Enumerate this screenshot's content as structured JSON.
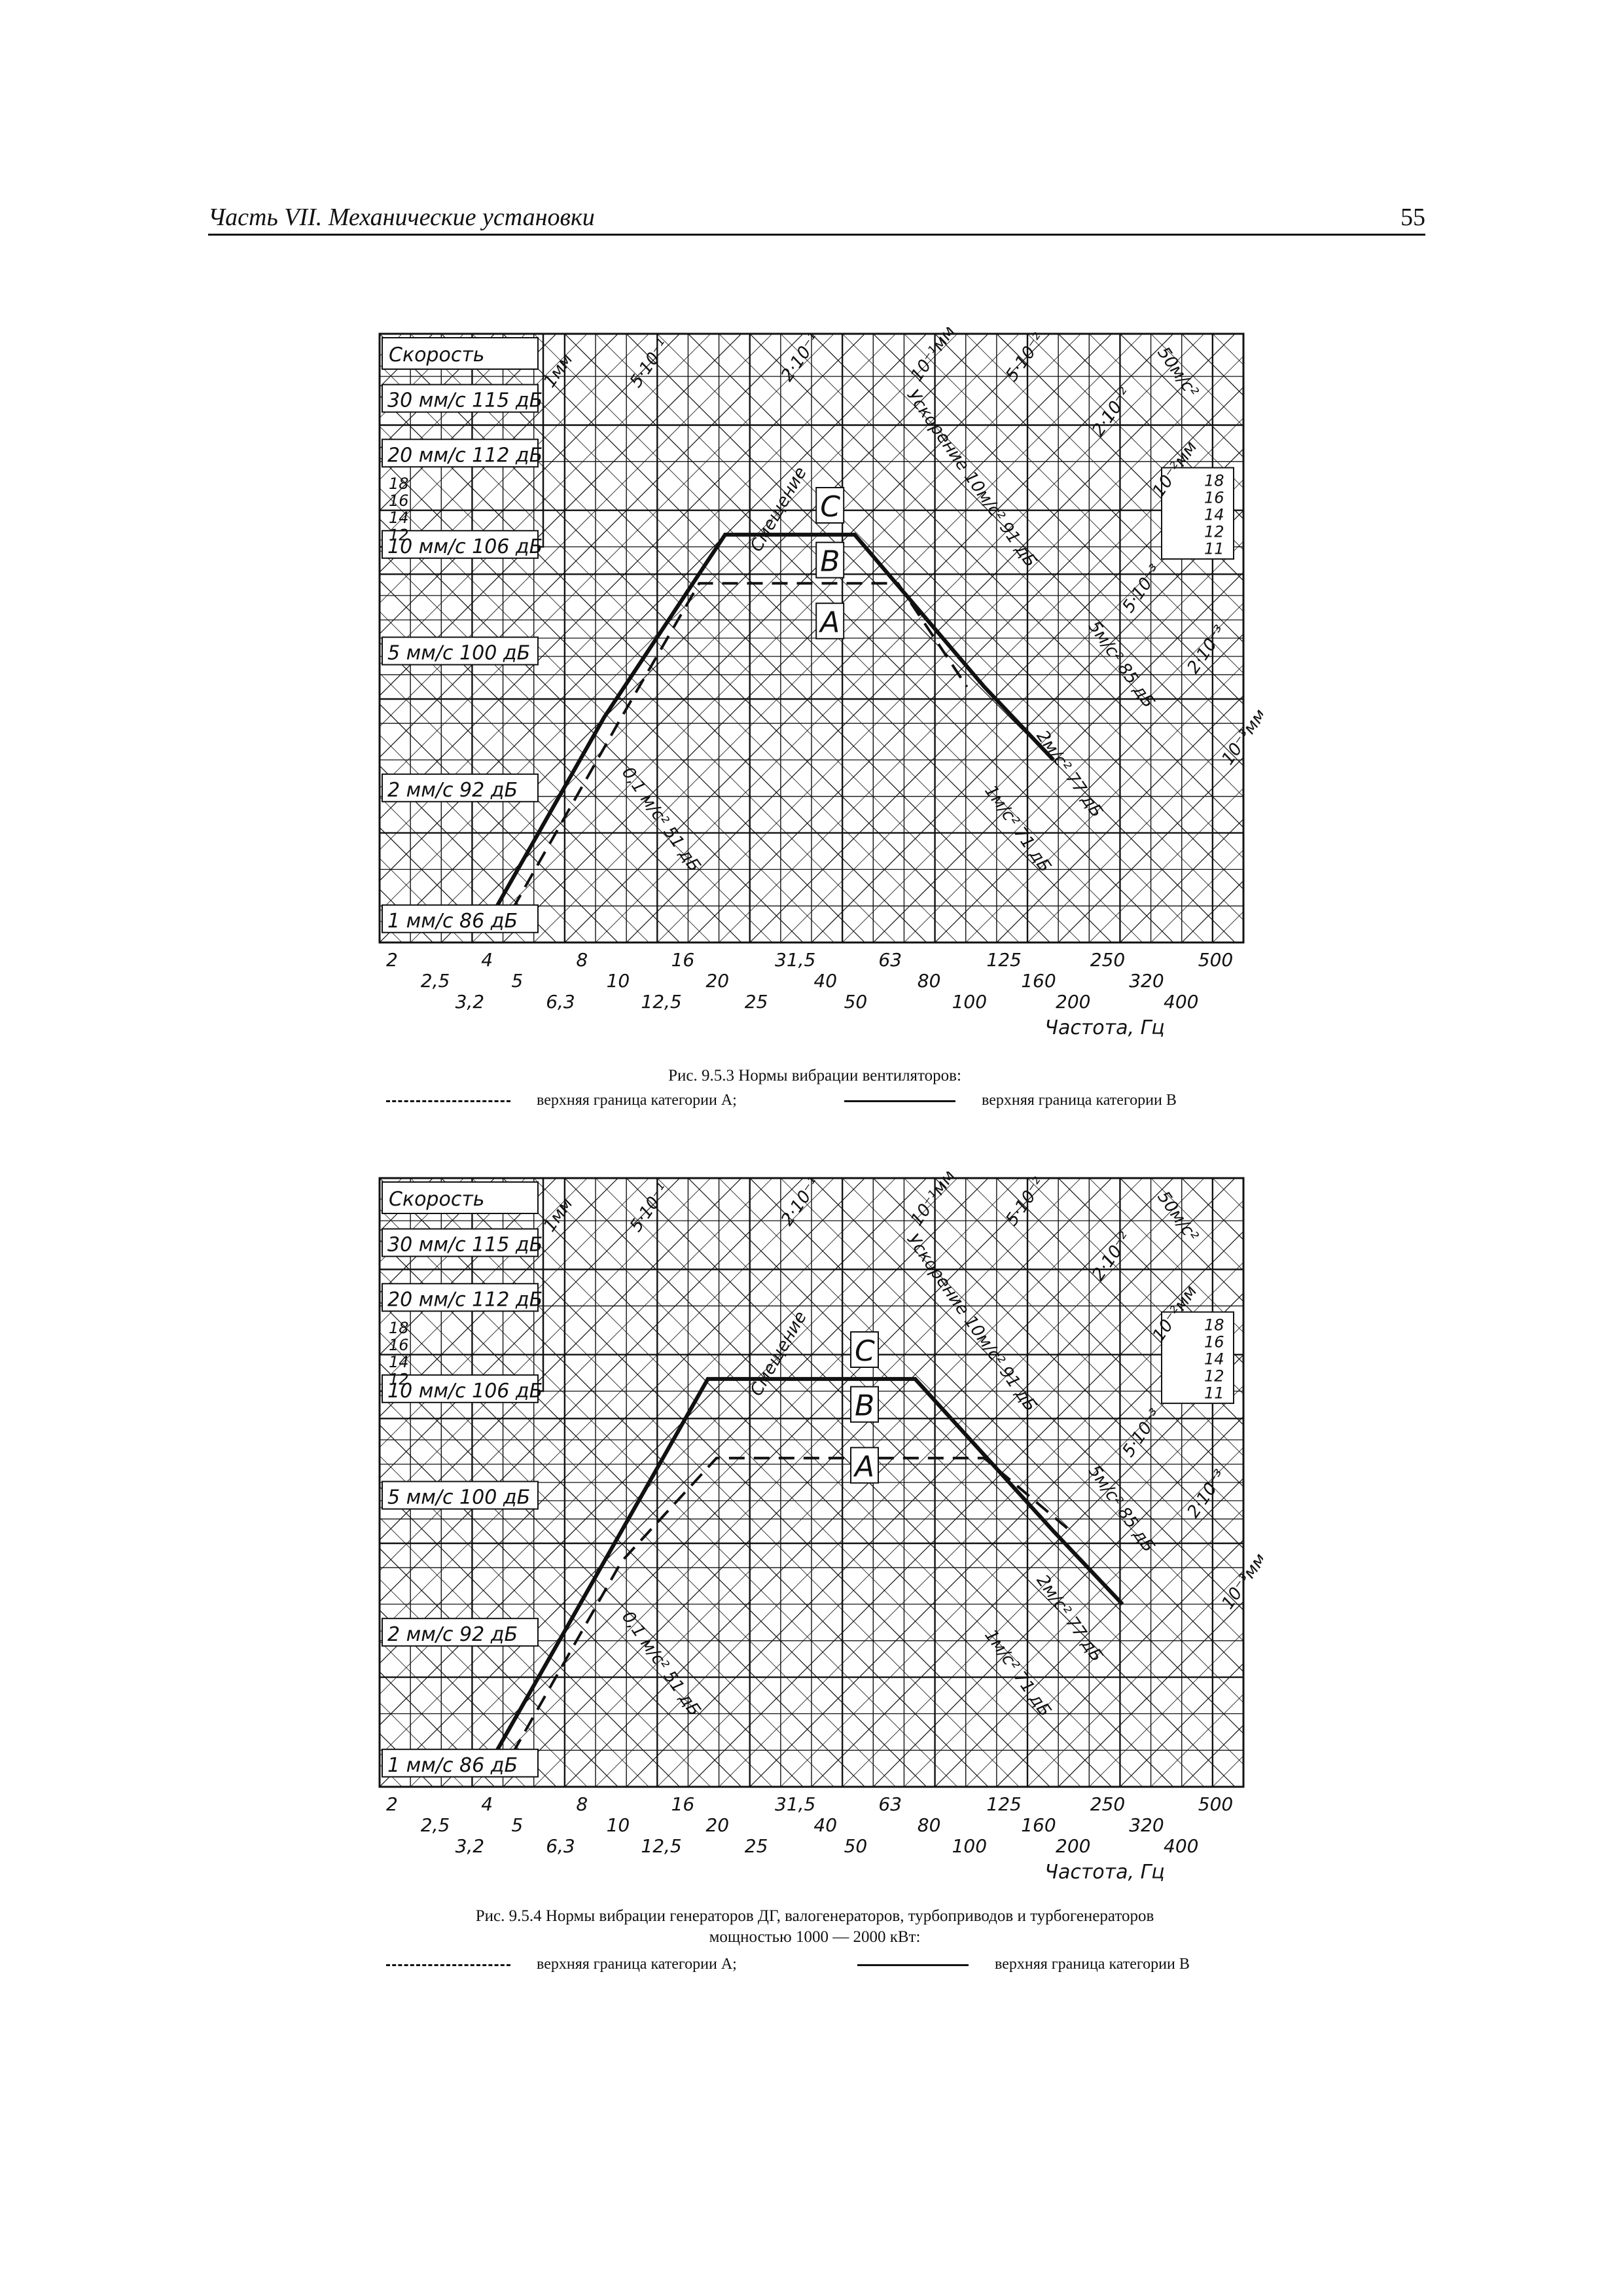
{
  "header": {
    "title": "Часть VII. Механические установки",
    "page_number": "55"
  },
  "figures": [
    {
      "id": "fig-9-5-3",
      "caption_lines": [
        "Рис. 9.5.3 Нормы вибрации вентиляторов:"
      ],
      "legend": {
        "dashed": "верхняя граница категории A;",
        "solid": "верхняя граница категории B"
      },
      "velocity_title": "Скорость",
      "velocity_labels": [
        "30 мм/с  115 дБ",
        "20 мм/с  112 дБ",
        "10 мм/с  106 дБ",
        "5 мм/с  100 дБ",
        "2 мм/с  92 дБ",
        "1 мм/с  86 дБ"
      ],
      "left_scale": [
        "18",
        "16",
        "14",
        "12"
      ],
      "right_scale": [
        "18",
        "16",
        "14",
        "12",
        "11"
      ],
      "zone_labels": [
        "C",
        "B",
        "A"
      ],
      "displacement_labels": [
        "1мм",
        "5·10⁻¹",
        "2·10⁻¹",
        "10⁻¹мм",
        "5·10⁻²",
        "2·10⁻²",
        "10⁻²мм",
        "5·10⁻³",
        "2·10⁻³",
        "10⁻³мм"
      ],
      "accel_labels": [
        "50м/с²",
        "Ускорение 10м/с² 91 дБ",
        "5м/с² 85 дБ",
        "2м/с² 77 дБ",
        "1м/с² 71 дБ",
        "0,1 м/с² 51 дБ"
      ],
      "smeshenie": "Смещение",
      "freq_row1": [
        "2",
        "4",
        "8",
        "16",
        "31,5",
        "63",
        "125",
        "250",
        "500"
      ],
      "freq_row2": [
        "2,5",
        "5",
        "10",
        "20",
        "40",
        "80",
        "160",
        "320"
      ],
      "freq_row3": [
        "3,2",
        "6,3",
        "12,5",
        "25",
        "50",
        "100",
        "200",
        "400"
      ],
      "x_axis_title": "Частота, Гц"
    },
    {
      "id": "fig-9-5-4",
      "caption_lines": [
        "Рис. 9.5.4 Нормы вибрации генераторов ДГ, валогенераторов, турбоприводов и турбогенераторов",
        "мощностью 1000 — 2000 кВт:"
      ],
      "legend": {
        "dashed": "верхняя граница категории A;",
        "solid": "верхняя граница категории B"
      },
      "velocity_title": "Скорость",
      "velocity_labels": [
        "30 мм/с  115 дБ",
        "20 мм/с  112 дБ",
        "10 мм/с  106 дБ",
        "5 мм/с  100 дБ",
        "2 мм/с  92 дБ",
        "1 мм/с  86 дБ"
      ],
      "left_scale": [
        "18",
        "16",
        "14",
        "12"
      ],
      "right_scale": [
        "18",
        "16",
        "14",
        "12",
        "11"
      ],
      "zone_labels": [
        "C",
        "B",
        "A"
      ],
      "displacement_labels": [
        "1мм",
        "5·10⁻¹",
        "2·10⁻¹",
        "10⁻¹мм",
        "5·10⁻²",
        "2·10⁻²",
        "10⁻²мм",
        "5·10⁻³",
        "2·10⁻³",
        "10⁻³мм"
      ],
      "accel_labels": [
        "50м/с²",
        "Ускорение 10м/с² 91 дБ",
        "5м/с² 85 дБ",
        "2м/с² 77 дБ",
        "1м/с² 71 дБ",
        "0,1 м/с² 51 дБ"
      ],
      "smeshenie": "Смещение",
      "freq_row1": [
        "2",
        "4",
        "8",
        "16",
        "31,5",
        "63",
        "125",
        "250",
        "500"
      ],
      "freq_row2": [
        "2,5",
        "5",
        "10",
        "20",
        "40",
        "80",
        "160",
        "320"
      ],
      "freq_row3": [
        "3,2",
        "6,3",
        "12,5",
        "25",
        "50",
        "100",
        "200",
        "400"
      ],
      "x_axis_title": "Частота, Гц"
    }
  ]
}
